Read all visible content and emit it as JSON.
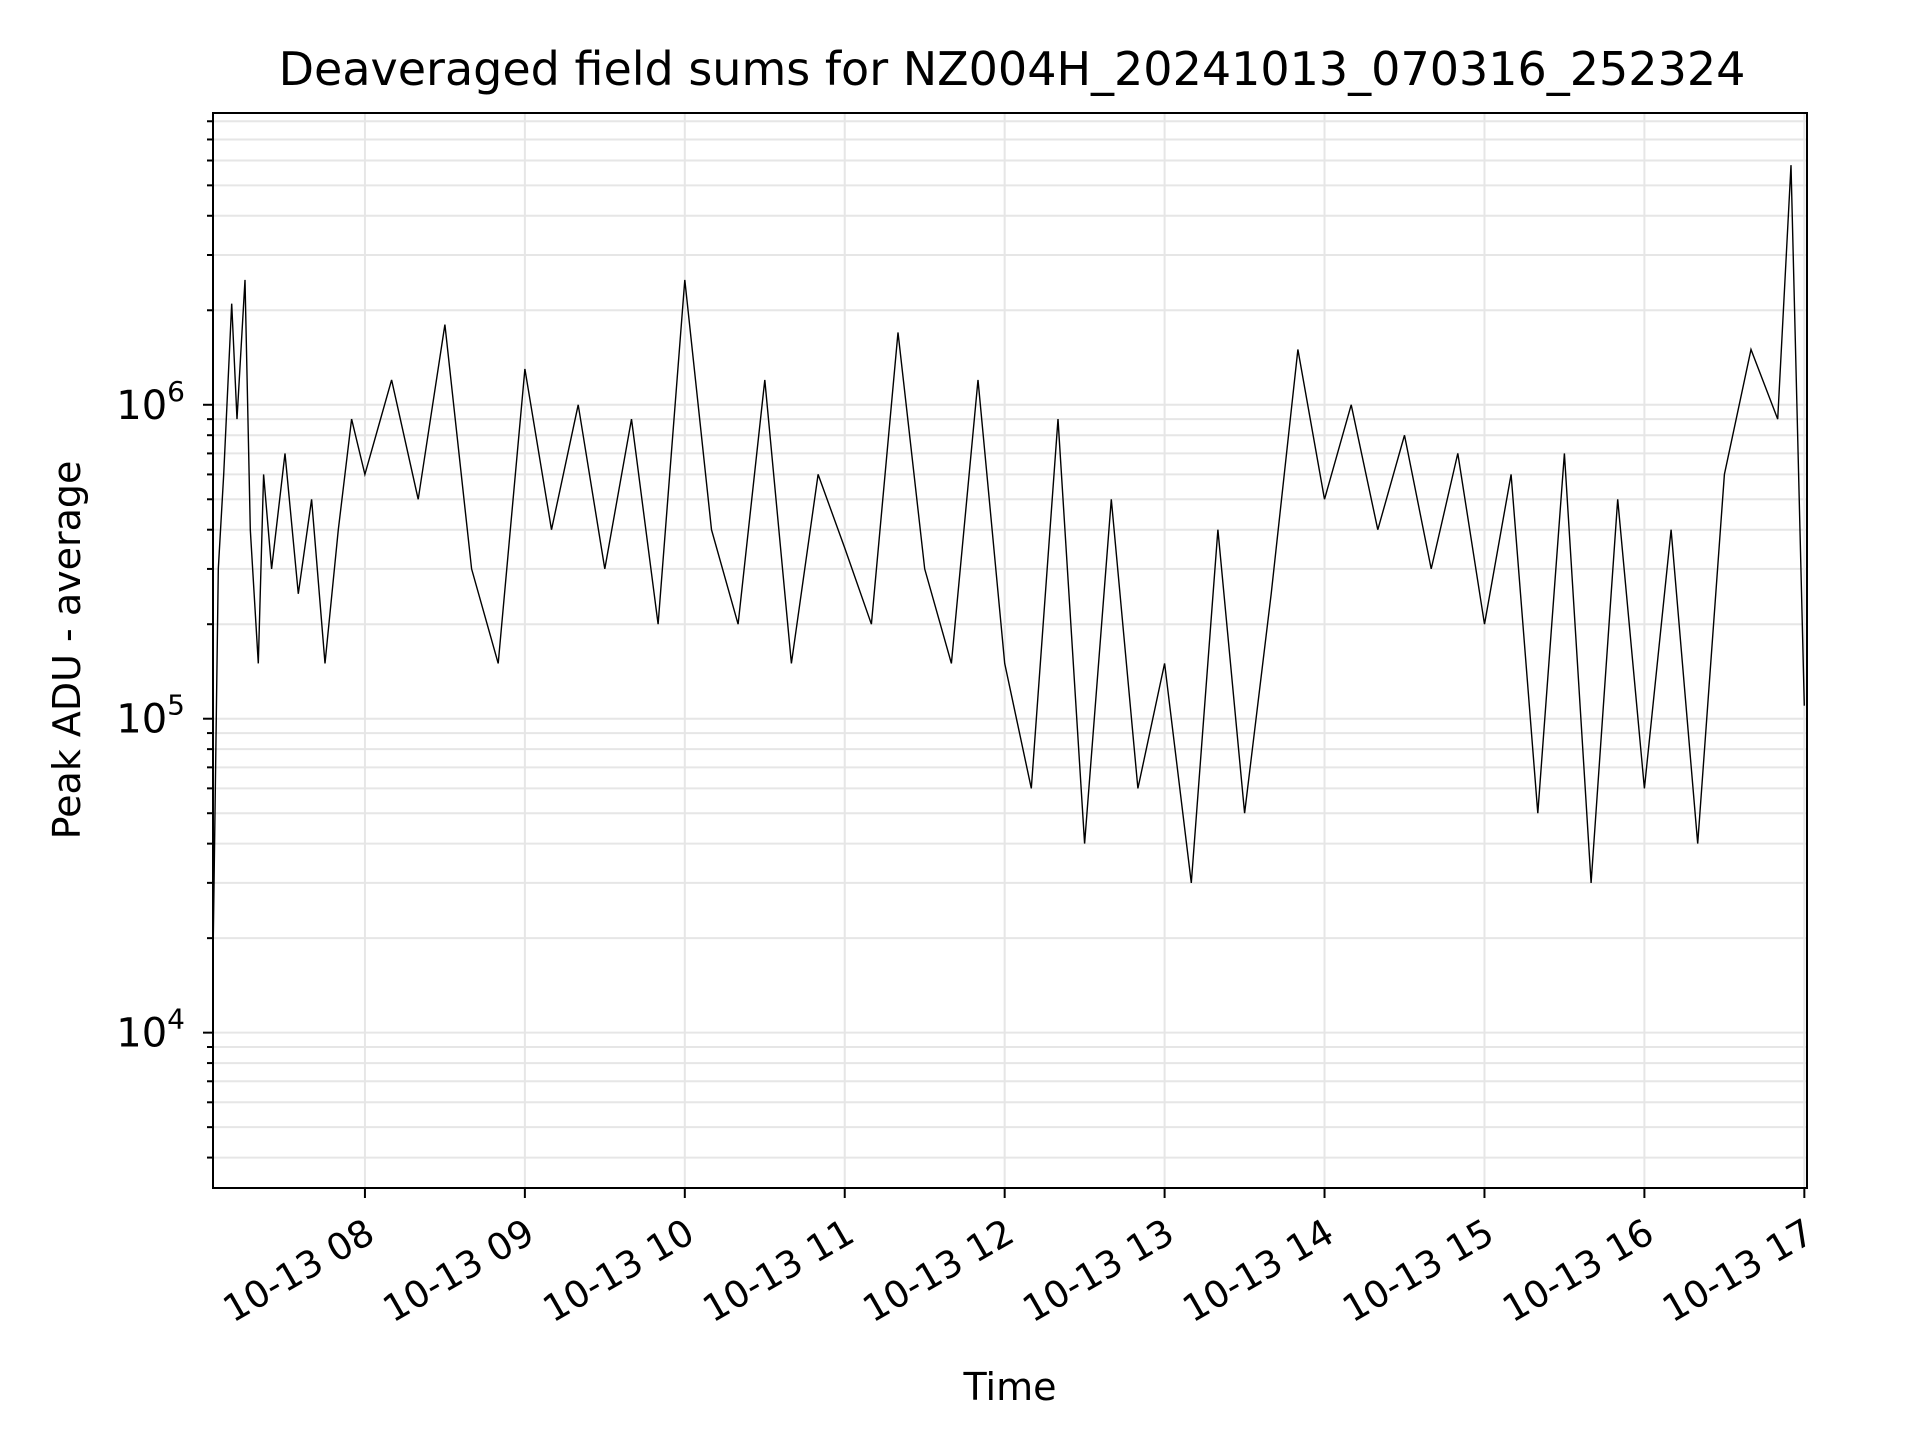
{
  "chart_data": {
    "type": "line",
    "title": "Deaveraged field sums for NZ004H_20241013_070316_252324",
    "xlabel": "Time",
    "ylabel": "Peak ADU - average",
    "y_scale": "log",
    "ylim": [
      3200,
      8500000
    ],
    "xlim": [
      "10-13 07:03",
      "10-13 17:01"
    ],
    "grid": true,
    "grid_color": "#e6e6e6",
    "line_color": "#000000",
    "x_ticks": [
      "10-13 08",
      "10-13 09",
      "10-13 10",
      "10-13 11",
      "10-13 12",
      "10-13 13",
      "10-13 14",
      "10-13 15",
      "10-13 16",
      "10-13 17"
    ],
    "y_ticks": [
      {
        "base": "10",
        "exp": "4",
        "value": 10000
      },
      {
        "base": "10",
        "exp": "5",
        "value": 100000
      },
      {
        "base": "10",
        "exp": "6",
        "value": 1000000
      }
    ],
    "series": [
      {
        "x": [
          "10-13 07:03",
          "10-13 07:05",
          "10-13 07:07",
          "10-13 07:10",
          "10-13 07:12",
          "10-13 07:15",
          "10-13 07:17",
          "10-13 07:20",
          "10-13 07:22",
          "10-13 07:25",
          "10-13 07:30",
          "10-13 07:35",
          "10-13 07:40",
          "10-13 07:45",
          "10-13 07:50",
          "10-13 07:55",
          "10-13 08:00",
          "10-13 08:10",
          "10-13 08:20",
          "10-13 08:30",
          "10-13 08:40",
          "10-13 08:50",
          "10-13 09:00",
          "10-13 09:10",
          "10-13 09:20",
          "10-13 09:30",
          "10-13 09:40",
          "10-13 09:50",
          "10-13 10:00",
          "10-13 10:10",
          "10-13 10:20",
          "10-13 10:30",
          "10-13 10:40",
          "10-13 10:50",
          "10-13 11:00",
          "10-13 11:10",
          "10-13 11:20",
          "10-13 11:30",
          "10-13 11:40",
          "10-13 11:50",
          "10-13 12:00",
          "10-13 12:10",
          "10-13 12:20",
          "10-13 12:30",
          "10-13 12:40",
          "10-13 12:50",
          "10-13 13:00",
          "10-13 13:10",
          "10-13 13:20",
          "10-13 13:30",
          "10-13 13:40",
          "10-13 13:50",
          "10-13 14:00",
          "10-13 14:10",
          "10-13 14:20",
          "10-13 14:30",
          "10-13 14:40",
          "10-13 14:50",
          "10-13 15:00",
          "10-13 15:10",
          "10-13 15:20",
          "10-13 15:30",
          "10-13 15:40",
          "10-13 15:50",
          "10-13 16:00",
          "10-13 16:10",
          "10-13 16:20",
          "10-13 16:30",
          "10-13 16:40",
          "10-13 16:50",
          "10-13 16:55",
          "10-13 17:00"
        ],
        "y": [
          17000,
          300000,
          600000,
          2100000,
          900000,
          2500000,
          400000,
          150000,
          600000,
          300000,
          700000,
          250000,
          500000,
          150000,
          400000,
          900000,
          600000,
          1200000,
          500000,
          1800000,
          300000,
          150000,
          1300000,
          400000,
          1000000,
          300000,
          900000,
          200000,
          2500000,
          400000,
          200000,
          1200000,
          150000,
          600000,
          350000,
          200000,
          1700000,
          300000,
          150000,
          1200000,
          150000,
          60000,
          900000,
          40000,
          500000,
          60000,
          150000,
          30000,
          400000,
          50000,
          250000,
          1500000,
          500000,
          1000000,
          400000,
          800000,
          300000,
          700000,
          200000,
          600000,
          50000,
          700000,
          30000,
          500000,
          60000,
          400000,
          40000,
          600000,
          1500000,
          900000,
          5800000,
          110000
        ]
      }
    ]
  }
}
